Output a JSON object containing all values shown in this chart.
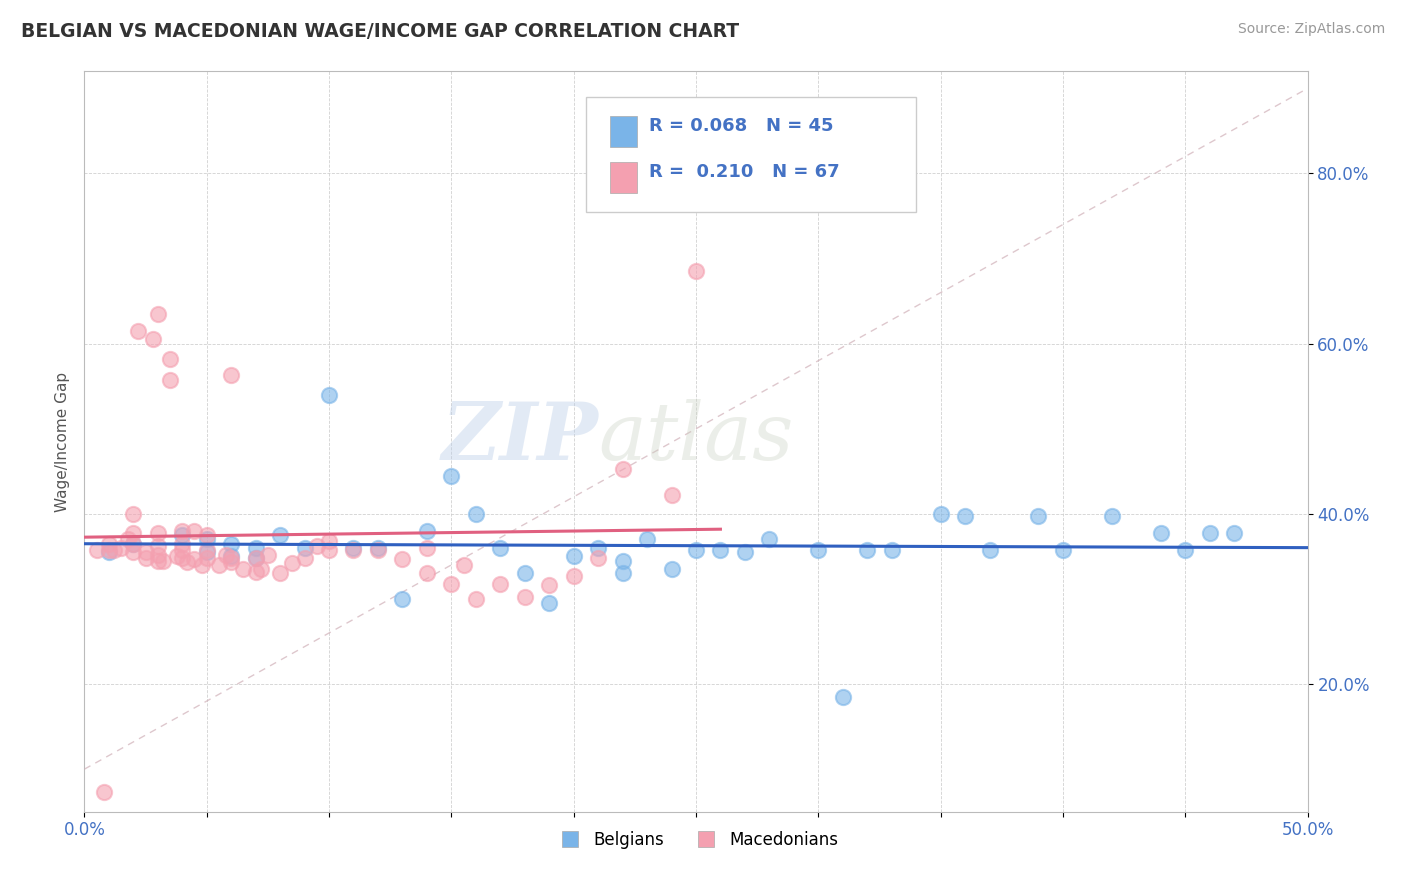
{
  "title": "BELGIAN VS MACEDONIAN WAGE/INCOME GAP CORRELATION CHART",
  "source": "Source: ZipAtlas.com",
  "ylabel": "Wage/Income Gap",
  "xlim": [
    0.0,
    0.5
  ],
  "ylim": [
    0.05,
    0.92
  ],
  "ytick_vals": [
    0.2,
    0.4,
    0.6,
    0.8
  ],
  "ytick_labels": [
    "20.0%",
    "40.0%",
    "60.0%",
    "80.0%"
  ],
  "xtick_vals": [
    0.0,
    0.05,
    0.1,
    0.15,
    0.2,
    0.25,
    0.3,
    0.35,
    0.4,
    0.45,
    0.5
  ],
  "xtick_labels": [
    "0.0%",
    "",
    "",
    "",
    "",
    "",
    "",
    "",
    "",
    "",
    "50.0%"
  ],
  "belgian_color": "#7ab4e8",
  "macedonian_color": "#f4a0b0",
  "belgian_line_color": "#3060c0",
  "macedonian_line_color": "#e06080",
  "diag_line_color": "#d0b0b8",
  "belgian_R": "0.068",
  "belgian_N": "45",
  "macedonian_R": "0.210",
  "macedonian_N": "67",
  "watermark_zip": "ZIP",
  "watermark_atlas": "atlas",
  "legend_title_belgian": "R = 0.068   N = 45",
  "legend_title_macedonian": "R =  0.210   N = 67",
  "belgians_x": [
    0.01,
    0.02,
    0.04,
    0.05,
    0.05,
    0.06,
    0.06,
    0.07,
    0.07,
    0.08,
    0.09,
    0.1,
    0.11,
    0.12,
    0.13,
    0.14,
    0.15,
    0.16,
    0.17,
    0.18,
    0.19,
    0.2,
    0.21,
    0.22,
    0.22,
    0.23,
    0.24,
    0.25,
    0.26,
    0.27,
    0.28,
    0.3,
    0.31,
    0.32,
    0.33,
    0.35,
    0.36,
    0.37,
    0.39,
    0.4,
    0.42,
    0.44,
    0.45,
    0.46,
    0.47
  ],
  "belgians_y": [
    0.355,
    0.365,
    0.375,
    0.355,
    0.37,
    0.35,
    0.365,
    0.348,
    0.36,
    0.375,
    0.36,
    0.54,
    0.36,
    0.36,
    0.3,
    0.38,
    0.445,
    0.4,
    0.36,
    0.33,
    0.295,
    0.35,
    0.36,
    0.33,
    0.345,
    0.37,
    0.335,
    0.358,
    0.358,
    0.355,
    0.37,
    0.357,
    0.185,
    0.357,
    0.357,
    0.4,
    0.398,
    0.357,
    0.398,
    0.357,
    0.398,
    0.377,
    0.357,
    0.377,
    0.377
  ],
  "macedonians_x": [
    0.005,
    0.008,
    0.01,
    0.01,
    0.012,
    0.015,
    0.018,
    0.02,
    0.02,
    0.02,
    0.02,
    0.022,
    0.025,
    0.025,
    0.028,
    0.03,
    0.03,
    0.03,
    0.03,
    0.03,
    0.032,
    0.035,
    0.035,
    0.038,
    0.04,
    0.04,
    0.04,
    0.04,
    0.042,
    0.045,
    0.045,
    0.048,
    0.05,
    0.05,
    0.05,
    0.055,
    0.058,
    0.06,
    0.06,
    0.06,
    0.065,
    0.07,
    0.07,
    0.072,
    0.075,
    0.08,
    0.085,
    0.09,
    0.095,
    0.1,
    0.1,
    0.11,
    0.12,
    0.13,
    0.14,
    0.14,
    0.15,
    0.155,
    0.16,
    0.17,
    0.18,
    0.19,
    0.2,
    0.21,
    0.22,
    0.24,
    0.25
  ],
  "macedonians_y": [
    0.358,
    0.073,
    0.358,
    0.365,
    0.358,
    0.36,
    0.37,
    0.355,
    0.365,
    0.378,
    0.4,
    0.615,
    0.348,
    0.355,
    0.605,
    0.345,
    0.352,
    0.362,
    0.377,
    0.635,
    0.345,
    0.557,
    0.582,
    0.35,
    0.348,
    0.358,
    0.365,
    0.38,
    0.343,
    0.347,
    0.38,
    0.34,
    0.348,
    0.358,
    0.375,
    0.34,
    0.352,
    0.343,
    0.348,
    0.563,
    0.335,
    0.332,
    0.348,
    0.335,
    0.352,
    0.33,
    0.342,
    0.348,
    0.362,
    0.357,
    0.368,
    0.357,
    0.358,
    0.347,
    0.33,
    0.36,
    0.318,
    0.34,
    0.3,
    0.318,
    0.302,
    0.316,
    0.327,
    0.348,
    0.453,
    0.422,
    0.685
  ]
}
